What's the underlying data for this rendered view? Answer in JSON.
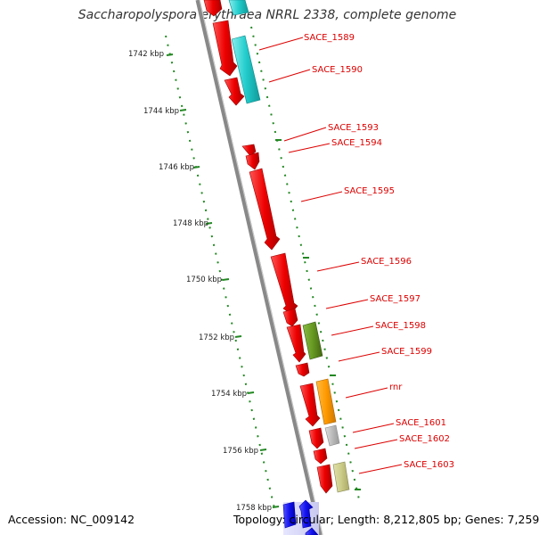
{
  "title": "Saccharopolyspora erythraea NRRL 2338, complete genome",
  "footer": {
    "accession": "Accession: NC_009142",
    "stats": "Topology: circular; Length: 8,212,805 bp; Genes: 7,259"
  },
  "colors": {
    "cds": "#ee0000",
    "trna": "#22cccc",
    "rrna": "#669922",
    "rnr": "#ff9900",
    "gray": "#bbbbbb",
    "khaki": "#cccc88",
    "blue": "#1111ee",
    "backbone": "#888888",
    "tick": "#228822",
    "label": "#dd0000"
  },
  "scale_ticks": [
    "1742 kbp",
    "1744 kbp",
    "1746 kbp",
    "1748 kbp",
    "1750 kbp",
    "1752 kbp",
    "1754 kbp",
    "1756 kbp",
    "1758 kbp"
  ],
  "gene_labels": [
    "SACE_1589",
    "SACE_1590",
    "SACE_1593",
    "SACE_1594",
    "SACE_1595",
    "SACE_1596",
    "SACE_1597",
    "SACE_1598",
    "SACE_1599",
    "rnr",
    "SACE_1601",
    "SACE_1602",
    "SACE_1603"
  ]
}
